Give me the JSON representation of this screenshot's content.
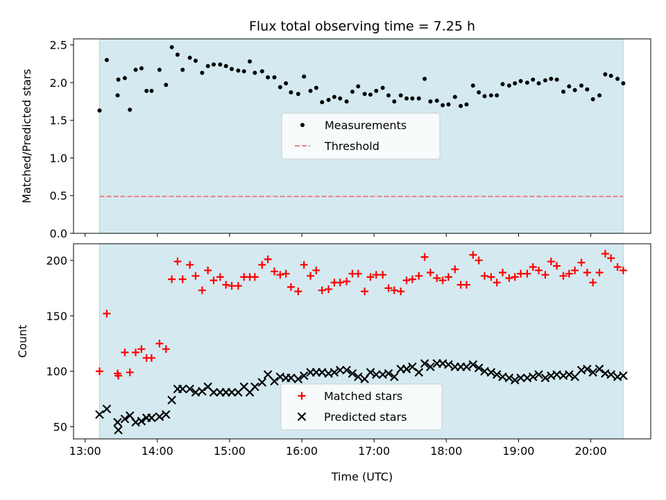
{
  "chart_data": {
    "title": "Flux total observing time = 7.25 h",
    "xlabel": "Time (UTC)",
    "x_tick_labels": [
      "13:00",
      "14:00",
      "15:00",
      "16:00",
      "17:00",
      "18:00",
      "19:00",
      "20:00"
    ],
    "x_tick_hours": [
      13,
      14,
      15,
      16,
      17,
      18,
      19,
      20
    ],
    "xlim_hours": [
      12.84,
      20.83
    ],
    "shaded_span_hours": [
      13.2,
      20.45
    ],
    "shade_color": "#d4eaf0",
    "panels": [
      {
        "type": "scatter",
        "ylabel": "Matched/Predicted stars",
        "ylim": [
          0,
          2.58
        ],
        "y_ticks": [
          0.0,
          0.5,
          1.0,
          1.5,
          2.0,
          2.5
        ],
        "y_tick_labels": [
          "0.0",
          "0.5",
          "1.0",
          "1.5",
          "2.0",
          "2.5"
        ],
        "legend_position": "center",
        "series": [
          {
            "name": "Measurements",
            "marker": "dot",
            "color": "#000000",
            "x": [
              13.2,
              13.3,
              13.45,
              13.46,
              13.55,
              13.62,
              13.7,
              13.78,
              13.85,
              13.92,
              14.03,
              14.12,
              14.2,
              14.28,
              14.35,
              14.45,
              14.53,
              14.62,
              14.7,
              14.78,
              14.87,
              14.95,
              15.03,
              15.12,
              15.2,
              15.28,
              15.35,
              15.45,
              15.53,
              15.62,
              15.7,
              15.78,
              15.85,
              15.95,
              16.03,
              16.12,
              16.2,
              16.28,
              16.37,
              16.45,
              16.53,
              16.62,
              16.7,
              16.78,
              16.87,
              16.95,
              17.03,
              17.12,
              17.2,
              17.28,
              17.37,
              17.45,
              17.53,
              17.62,
              17.7,
              17.78,
              17.87,
              17.95,
              18.03,
              18.12,
              18.2,
              18.28,
              18.37,
              18.45,
              18.53,
              18.62,
              18.7,
              18.78,
              18.87,
              18.95,
              19.03,
              19.12,
              19.2,
              19.28,
              19.37,
              19.45,
              19.53,
              19.62,
              19.7,
              19.78,
              19.87,
              19.95,
              20.03,
              20.12,
              20.2,
              20.28,
              20.37,
              20.45
            ],
            "y": [
              1.63,
              2.3,
              1.83,
              2.04,
              2.06,
              1.64,
              2.17,
              2.19,
              1.89,
              1.89,
              2.17,
              1.97,
              2.47,
              2.37,
              2.17,
              2.33,
              2.29,
              2.13,
              2.22,
              2.24,
              2.24,
              2.22,
              2.18,
              2.16,
              2.15,
              2.28,
              2.13,
              2.15,
              2.07,
              2.07,
              1.94,
              1.99,
              1.87,
              1.85,
              2.08,
              1.89,
              1.93,
              1.74,
              1.77,
              1.81,
              1.79,
              1.75,
              1.88,
              1.95,
              1.85,
              1.84,
              1.89,
              1.93,
              1.83,
              1.75,
              1.83,
              1.79,
              1.79,
              1.79,
              2.05,
              1.75,
              1.76,
              1.7,
              1.71,
              1.81,
              1.69,
              1.71,
              1.96,
              1.87,
              1.82,
              1.83,
              1.83,
              1.98,
              1.96,
              1.99,
              2.02,
              2.0,
              2.04,
              1.99,
              2.03,
              2.05,
              2.04,
              1.88,
              1.95,
              1.9,
              1.96,
              1.91,
              1.78,
              1.83,
              2.11,
              2.09,
              2.05,
              1.99
            ]
          },
          {
            "name": "Threshold",
            "marker": "dashed-line",
            "color": "#f08080",
            "y_constant": 0.49
          }
        ]
      },
      {
        "type": "scatter",
        "ylabel": "Count",
        "ylim": [
          39,
          215
        ],
        "y_ticks": [
          50,
          100,
          150,
          200
        ],
        "y_tick_labels": [
          "50",
          "100",
          "150",
          "200"
        ],
        "legend_position": "bottom-center",
        "series": [
          {
            "name": "Matched stars",
            "marker": "plus",
            "color": "#ff0000",
            "x": [
              13.2,
              13.3,
              13.45,
              13.46,
              13.55,
              13.62,
              13.7,
              13.78,
              13.85,
              13.92,
              14.03,
              14.12,
              14.2,
              14.28,
              14.35,
              14.45,
              14.53,
              14.62,
              14.7,
              14.78,
              14.87,
              14.95,
              15.03,
              15.12,
              15.2,
              15.28,
              15.35,
              15.45,
              15.53,
              15.62,
              15.7,
              15.78,
              15.85,
              15.95,
              16.03,
              16.12,
              16.2,
              16.28,
              16.37,
              16.45,
              16.53,
              16.62,
              16.7,
              16.78,
              16.87,
              16.95,
              17.03,
              17.12,
              17.2,
              17.28,
              17.37,
              17.45,
              17.53,
              17.62,
              17.7,
              17.78,
              17.87,
              17.95,
              18.03,
              18.12,
              18.2,
              18.28,
              18.37,
              18.45,
              18.53,
              18.62,
              18.7,
              18.78,
              18.87,
              18.95,
              19.03,
              19.12,
              19.2,
              19.28,
              19.37,
              19.45,
              19.53,
              19.62,
              19.7,
              19.78,
              19.87,
              19.95,
              20.03,
              20.12,
              20.2,
              20.28,
              20.37,
              20.45
            ],
            "y": [
              100,
              152,
              98,
              96,
              117,
              99,
              117,
              120,
              112,
              112,
              125,
              120,
              183,
              199,
              183,
              196,
              186,
              173,
              191,
              182,
              185,
              178,
              177,
              177,
              185,
              185,
              185,
              196,
              201,
              190,
              187,
              188,
              176,
              172,
              196,
              186,
              191,
              173,
              174,
              180,
              180,
              181,
              188,
              188,
              172,
              185,
              187,
              187,
              175,
              173,
              172,
              182,
              183,
              186,
              203,
              189,
              184,
              182,
              185,
              192,
              178,
              178,
              205,
              200,
              186,
              185,
              180,
              189,
              184,
              185,
              188,
              188,
              194,
              191,
              187,
              199,
              195,
              186,
              188,
              191,
              198,
              189,
              180,
              189,
              206,
              202,
              194,
              191
            ]
          },
          {
            "name": "Predicted stars",
            "marker": "x",
            "color": "#000000",
            "x": [
              13.2,
              13.3,
              13.45,
              13.46,
              13.55,
              13.62,
              13.7,
              13.78,
              13.85,
              13.92,
              14.03,
              14.12,
              14.2,
              14.28,
              14.35,
              14.45,
              14.53,
              14.62,
              14.7,
              14.78,
              14.87,
              14.95,
              15.03,
              15.12,
              15.2,
              15.28,
              15.35,
              15.45,
              15.53,
              15.62,
              15.7,
              15.78,
              15.85,
              15.95,
              16.03,
              16.12,
              16.2,
              16.28,
              16.37,
              16.45,
              16.53,
              16.62,
              16.7,
              16.78,
              16.87,
              16.95,
              17.03,
              17.12,
              17.2,
              17.28,
              17.37,
              17.45,
              17.53,
              17.62,
              17.7,
              17.78,
              17.87,
              17.95,
              18.03,
              18.12,
              18.2,
              18.28,
              18.37,
              18.45,
              18.53,
              18.62,
              18.7,
              18.78,
              18.87,
              18.95,
              19.03,
              19.12,
              19.2,
              19.28,
              19.37,
              19.45,
              19.53,
              19.62,
              19.7,
              19.78,
              19.87,
              19.95,
              20.03,
              20.12,
              20.2,
              20.28,
              20.37,
              20.45
            ],
            "y": [
              61,
              66,
              54,
              47,
              57,
              60,
              54,
              55,
              58,
              58,
              59,
              61,
              74,
              84,
              84,
              84,
              81,
              82,
              86,
              81,
              81,
              81,
              81,
              81,
              86,
              81,
              86,
              90,
              97,
              91,
              95,
              94,
              94,
              93,
              96,
              99,
              99,
              99,
              98,
              99,
              101,
              101,
              98,
              95,
              93,
              99,
              97,
              97,
              98,
              95,
              102,
              102,
              104,
              99,
              107,
              104,
              107,
              107,
              106,
              104,
              104,
              104,
              106,
              103,
              100,
              99,
              97,
              95,
              94,
              92,
              94,
              94,
              95,
              97,
              94,
              96,
              97,
              96,
              97,
              95,
              101,
              102,
              99,
              102,
              98,
              97,
              95,
              96
            ]
          }
        ]
      }
    ]
  }
}
